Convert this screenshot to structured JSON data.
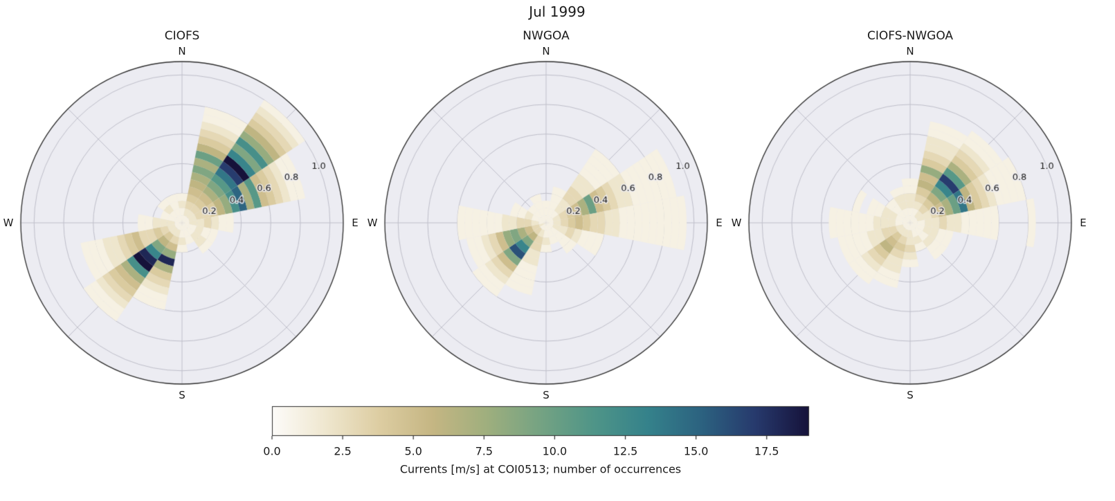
{
  "figure": {
    "title": "Jul 1999"
  },
  "chart_data": {
    "type": "polar-rose-histogram",
    "title": "Jul 1999",
    "compass_labels": [
      "N",
      "E",
      "S",
      "W"
    ],
    "direction_bins_deg": [
      0,
      22.5,
      45,
      67.5,
      90,
      112.5,
      135,
      157.5,
      180,
      202.5,
      225,
      247.5,
      270,
      292.5,
      315,
      337.5
    ],
    "radial": {
      "units": "m/s",
      "bin_width": 0.05,
      "rmax": 1.09,
      "ticks": [
        0.2,
        0.4,
        0.6,
        0.8,
        1.0
      ],
      "tick_labels": [
        "0.2",
        "0.4",
        "0.6",
        "0.8",
        "1.0"
      ],
      "tick_label_angle_deg": 67.5
    },
    "colormap": {
      "vmin": 0,
      "vmax": 19,
      "stops": [
        [
          0.0,
          "#fdfcfa"
        ],
        [
          0.1,
          "#efe7cf"
        ],
        [
          0.2,
          "#ddcda2"
        ],
        [
          0.3,
          "#c5b683"
        ],
        [
          0.4,
          "#9faf7e"
        ],
        [
          0.5,
          "#75a383"
        ],
        [
          0.6,
          "#4f9588"
        ],
        [
          0.7,
          "#35828b"
        ],
        [
          0.8,
          "#2c6280"
        ],
        [
          0.9,
          "#273a6d"
        ],
        [
          1.0,
          "#16123a"
        ]
      ]
    },
    "colorbar": {
      "label": "Currents [m/s] at COI0513; number of occurrences",
      "tick_values": [
        0.0,
        2.5,
        5.0,
        7.5,
        10.0,
        12.5,
        15.0,
        17.5
      ],
      "tick_labels": [
        "0.0",
        "2.5",
        "5.0",
        "7.5",
        "10.0",
        "12.5",
        "15.0",
        "17.5"
      ]
    },
    "plots": [
      {
        "title": "CIOFS",
        "counts": [
          [
            1,
            1,
            2,
            1
          ],
          [
            1,
            2,
            3,
            4,
            5,
            6,
            7,
            9,
            7,
            10,
            6,
            4,
            3,
            2,
            1,
            1
          ],
          [
            1,
            2,
            3,
            4,
            5,
            7,
            9,
            11,
            14,
            17,
            19,
            13,
            9,
            12,
            8,
            6,
            4,
            3,
            2,
            1
          ],
          [
            1,
            2,
            3,
            3,
            4,
            6,
            8,
            12,
            15,
            7,
            11,
            5,
            4,
            3,
            2,
            1,
            1
          ],
          [
            1,
            2,
            2,
            3,
            2,
            1,
            1
          ],
          [
            1,
            1,
            2,
            1,
            1
          ],
          [
            1,
            1,
            2,
            2,
            1
          ],
          [
            1,
            1,
            1
          ],
          [
            1,
            1,
            2,
            1
          ],
          [
            1,
            2,
            3,
            5,
            8,
            18,
            7,
            4,
            3,
            2,
            1,
            1
          ],
          [
            1,
            2,
            4,
            6,
            9,
            13,
            18,
            19,
            12,
            7,
            5,
            4,
            3,
            2,
            1,
            1
          ],
          [
            1,
            2,
            3,
            4,
            3,
            3,
            5,
            4,
            3,
            2,
            2,
            1,
            1,
            1
          ],
          [
            1,
            2,
            2,
            2,
            1,
            1
          ],
          [
            1,
            1,
            1
          ],
          [
            1,
            1,
            2,
            1
          ],
          [
            1,
            1,
            1,
            1
          ]
        ]
      },
      {
        "title": "NWGOA",
        "counts": [
          [
            1,
            1,
            1
          ],
          [
            1,
            1,
            1,
            1,
            1
          ],
          [
            1,
            1,
            2,
            2,
            3,
            3,
            2,
            2,
            1,
            1,
            1,
            1
          ],
          [
            1,
            2,
            3,
            4,
            5,
            7,
            10,
            5,
            4,
            3,
            2,
            2,
            1,
            1,
            1,
            1,
            1,
            1
          ],
          [
            1,
            2,
            3,
            4,
            5,
            4,
            3,
            3,
            2,
            2,
            1,
            1,
            1,
            1,
            1,
            1,
            1,
            1,
            1
          ],
          [
            1,
            2,
            2,
            3,
            2,
            1,
            1,
            1
          ],
          [
            1,
            1,
            1,
            1,
            1
          ],
          [
            1,
            1,
            1
          ],
          [
            1,
            1,
            2,
            1
          ],
          [
            1,
            2,
            3,
            3,
            2,
            2,
            1,
            1,
            1,
            1
          ],
          [
            1,
            3,
            6,
            9,
            13,
            16,
            9,
            5,
            3,
            2,
            1,
            1
          ],
          [
            2,
            3,
            5,
            7,
            9,
            8,
            5,
            3,
            2,
            1,
            1
          ],
          [
            1,
            2,
            3,
            3,
            2,
            2,
            1,
            1,
            1,
            1,
            1,
            1
          ],
          [
            1,
            1,
            2,
            1,
            1
          ],
          [
            1,
            1,
            1
          ],
          [
            1,
            1,
            1,
            1
          ]
        ]
      },
      {
        "title": "CIOFS-NWGOA",
        "counts": [
          [
            1,
            1,
            2,
            2,
            1,
            1
          ],
          [
            1,
            1,
            2,
            3,
            4,
            6,
            5,
            8,
            4,
            3,
            2,
            2,
            1,
            1
          ],
          [
            1,
            2,
            3,
            4,
            6,
            9,
            13,
            17,
            11,
            7,
            4,
            3,
            2,
            1,
            1
          ],
          [
            1,
            2,
            2,
            3,
            5,
            7,
            10,
            14,
            6,
            4,
            3,
            2,
            1,
            1,
            1,
            1
          ],
          [
            1,
            1,
            2,
            2,
            3,
            2,
            2,
            1,
            1,
            1,
            1,
            1,
            0,
            0,
            0,
            0,
            1
          ],
          [
            1,
            1,
            2,
            2,
            1,
            1
          ],
          [
            1,
            1,
            1,
            2,
            1,
            1
          ],
          [
            1,
            1,
            2,
            1
          ],
          [
            1,
            2,
            2,
            3,
            2,
            1
          ],
          [
            1,
            2,
            3,
            4,
            3,
            2,
            2,
            1,
            1
          ],
          [
            1,
            2,
            4,
            5,
            6,
            4,
            3,
            2,
            1,
            1
          ],
          [
            1,
            2,
            3,
            3,
            2,
            2,
            1,
            1,
            1,
            1
          ],
          [
            1,
            1,
            2,
            2,
            2,
            1,
            1,
            1,
            1,
            1,
            1
          ],
          [
            1,
            1,
            2,
            2,
            1,
            1,
            0,
            1
          ],
          [
            1,
            1,
            1,
            1
          ],
          [
            1,
            1,
            2,
            2,
            1
          ]
        ]
      }
    ],
    "style_colors": {
      "polar_face": "#ececf2",
      "grid_line": "#bfbfca",
      "axis_edge": "#2b2b2b",
      "text": "#1a1a1a"
    }
  }
}
